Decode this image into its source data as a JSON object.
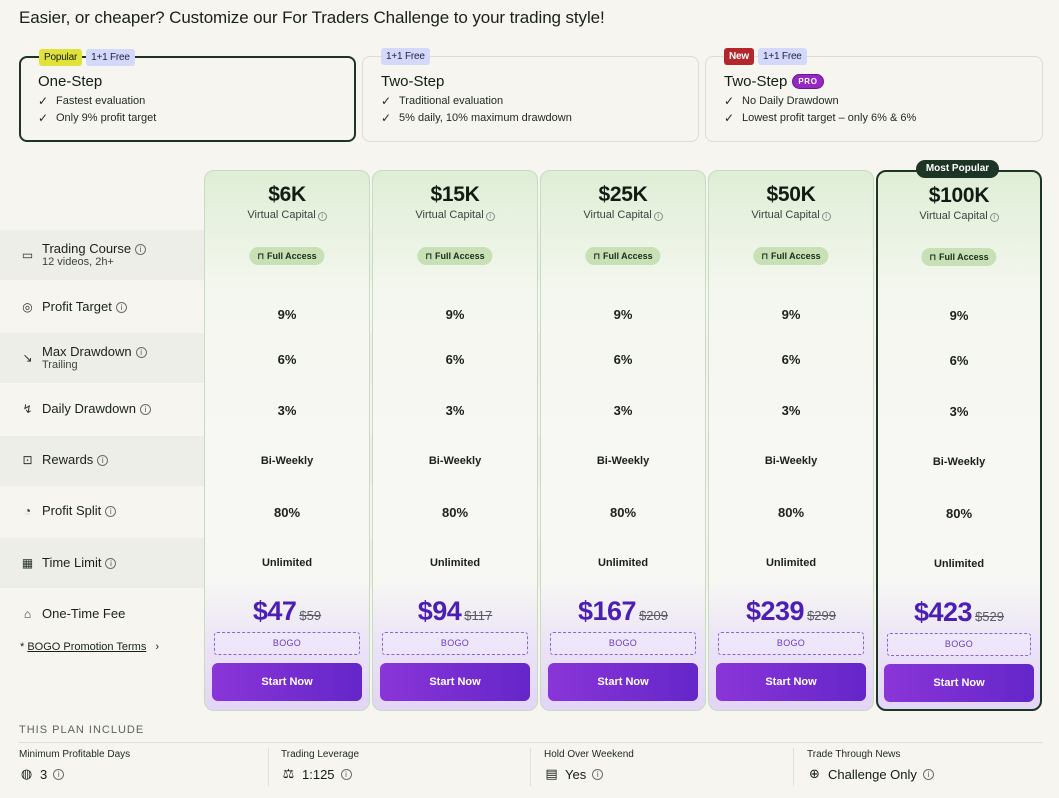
{
  "headline": "Easier, or cheaper? Customize our For Traders Challenge to your trading style!",
  "plans": [
    {
      "badges": [
        "Popular",
        "1+1 Free"
      ],
      "title": "One-Step",
      "pro": "",
      "features": [
        "Fastest evaluation",
        "Only 9% profit target"
      ]
    },
    {
      "badges": [
        "1+1 Free"
      ],
      "title": "Two-Step",
      "pro": "",
      "features": [
        "Traditional evaluation",
        "5% daily, 10% maximum drawdown"
      ]
    },
    {
      "badges": [
        "New",
        "1+1 Free"
      ],
      "title": "Two-Step",
      "pro": "PRO",
      "features": [
        "No Daily Drawdown",
        "Lowest profit target – only 6% & 6%"
      ]
    }
  ],
  "row_labels": {
    "course": "Trading Course",
    "course_sub": "12 videos, 2h+",
    "profit_target": "Profit Target",
    "max_drawdown": "Max Drawdown",
    "max_drawdown_sub": "Trailing",
    "daily_drawdown": "Daily Drawdown",
    "rewards": "Rewards",
    "profit_split": "Profit Split",
    "time_limit": "Time Limit",
    "fee": "One-Time Fee"
  },
  "promo": {
    "prefix": "* ",
    "link": "BOGO Promotion Terms",
    "chevron": "›"
  },
  "most_popular": "Most Popular",
  "capital_label": "Virtual Capital",
  "access_label": "Full Access",
  "bogo_label": "BOGO",
  "start_label": "Start Now",
  "columns": [
    {
      "capital": "$6K",
      "profit_target": "9%",
      "max_drawdown": "6%",
      "daily_drawdown": "3%",
      "rewards": "Bi-Weekly",
      "profit_split": "80%",
      "time_limit": "Unlimited",
      "price": "$47",
      "old_price": "$59"
    },
    {
      "capital": "$15K",
      "profit_target": "9%",
      "max_drawdown": "6%",
      "daily_drawdown": "3%",
      "rewards": "Bi-Weekly",
      "profit_split": "80%",
      "time_limit": "Unlimited",
      "price": "$94",
      "old_price": "$117"
    },
    {
      "capital": "$25K",
      "profit_target": "9%",
      "max_drawdown": "6%",
      "daily_drawdown": "3%",
      "rewards": "Bi-Weekly",
      "profit_split": "80%",
      "time_limit": "Unlimited",
      "price": "$167",
      "old_price": "$209"
    },
    {
      "capital": "$50K",
      "profit_target": "9%",
      "max_drawdown": "6%",
      "daily_drawdown": "3%",
      "rewards": "Bi-Weekly",
      "profit_split": "80%",
      "time_limit": "Unlimited",
      "price": "$239",
      "old_price": "$299"
    },
    {
      "capital": "$100K",
      "profit_target": "9%",
      "max_drawdown": "6%",
      "daily_drawdown": "3%",
      "rewards": "Bi-Weekly",
      "profit_split": "80%",
      "time_limit": "Unlimited",
      "price": "$423",
      "old_price": "$529"
    }
  ],
  "includes": {
    "title": "THIS PLAN INCLUDE",
    "items": [
      {
        "label": "Minimum Profitable Days",
        "value": "3",
        "icon": "calendar-globe-icon"
      },
      {
        "label": "Trading Leverage",
        "value": "1:125",
        "icon": "leverage-icon"
      },
      {
        "label": "Hold Over Weekend",
        "value": "Yes",
        "icon": "calendar-icon"
      },
      {
        "label": "Trade Through News",
        "value": "Challenge Only",
        "icon": "globe-icon"
      }
    ]
  },
  "colors": {
    "accent": "#6426c9",
    "brand_dark": "#1c3524",
    "price": "#4b1fb3"
  }
}
